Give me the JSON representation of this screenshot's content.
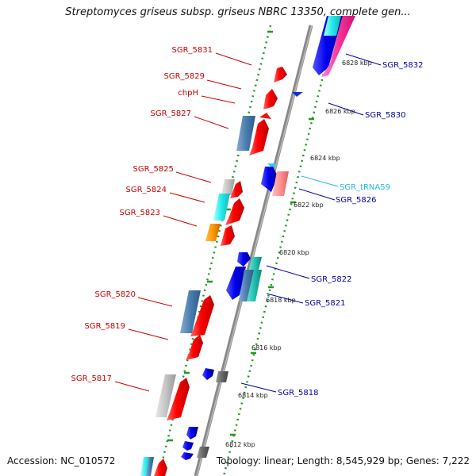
{
  "title": "Streptomyces griseus subsp. griseus NBRC 13350, complete gen...",
  "footer": {
    "accession": "Accession: NC_010572",
    "summary": "Topology: linear; Length: 8,545,929 bp; Genes: 7,222"
  },
  "colors": {
    "forward_label": "#cc0000",
    "reverse_label": "#0000aa",
    "trna_label": "#22bbdd",
    "backbone": "#888888",
    "scale_dots": "#229922"
  },
  "kbp_ticks": [
    "6828 kbp",
    "6826 kbp",
    "6824 kbp",
    "6822 kbp",
    "6820 kbp",
    "6818 kbp",
    "6816 kbp",
    "6814 kbp",
    "6812 kbp"
  ],
  "left_labels": [
    "SGR_5831",
    "SGR_5829",
    "chpH",
    "SGR_5827",
    "SGR_5825",
    "SGR_5824",
    "SGR_5823",
    "SGR_5820",
    "SGR_5819",
    "SGR_5817"
  ],
  "right_labels": [
    "SGR_5832",
    "SGR_5830",
    "SGR_tRNA59",
    "SGR_5826",
    "SGR_5822",
    "SGR_5821",
    "SGR_5818"
  ]
}
